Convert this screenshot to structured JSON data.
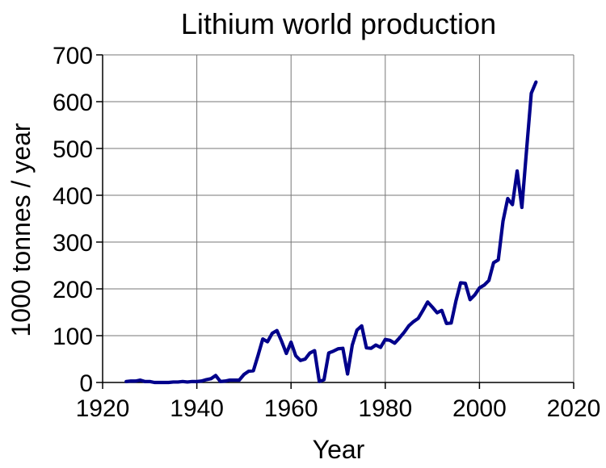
{
  "chart_data": {
    "type": "line",
    "title": "Lithium world production",
    "xlabel": "Year",
    "ylabel": "1000 tonnes / year",
    "xlim": [
      1920,
      2020
    ],
    "ylim": [
      0,
      700
    ],
    "xticks": [
      1920,
      1940,
      1960,
      1980,
      2000,
      2020
    ],
    "yticks": [
      0,
      100,
      200,
      300,
      400,
      500,
      600,
      700
    ],
    "grid": true,
    "colors": {
      "line": "#00008b"
    },
    "series": [
      {
        "x": [
          1925,
          1926,
          1927,
          1928,
          1929,
          1930,
          1931,
          1932,
          1933,
          1934,
          1935,
          1936,
          1937,
          1938,
          1939,
          1940,
          1941,
          1942,
          1943,
          1944,
          1945,
          1946,
          1947,
          1948,
          1949,
          1950,
          1951,
          1952,
          1953,
          1954,
          1955,
          1956,
          1957,
          1958,
          1959,
          1960,
          1961,
          1962,
          1963,
          1964,
          1965,
          1966,
          1967,
          1968,
          1969,
          1970,
          1971,
          1972,
          1973,
          1974,
          1975,
          1976,
          1977,
          1978,
          1979,
          1980,
          1981,
          1982,
          1983,
          1984,
          1985,
          1986,
          1987,
          1988,
          1989,
          1990,
          1991,
          1992,
          1993,
          1994,
          1995,
          1996,
          1997,
          1998,
          1999,
          2000,
          2001,
          2002,
          2003,
          2004,
          2005,
          2006,
          2007,
          2008,
          2009,
          2010,
          2011,
          2012
        ],
        "y": [
          2,
          3,
          3,
          5,
          2,
          2,
          0,
          0,
          0,
          0,
          1,
          1,
          2,
          1,
          2,
          2,
          3,
          6,
          8,
          15,
          2,
          3,
          5,
          5,
          5,
          17,
          24,
          25,
          58,
          93,
          87,
          105,
          111,
          88,
          62,
          86,
          57,
          47,
          50,
          63,
          68,
          2,
          6,
          63,
          67,
          72,
          73,
          18,
          80,
          112,
          121,
          74,
          73,
          80,
          75,
          92,
          90,
          84,
          95,
          107,
          121,
          130,
          137,
          154,
          172,
          161,
          149,
          154,
          126,
          127,
          174,
          213,
          212,
          177,
          187,
          202,
          208,
          218,
          256,
          262,
          345,
          393,
          380,
          452,
          374,
          497,
          618,
          642
        ]
      }
    ]
  }
}
